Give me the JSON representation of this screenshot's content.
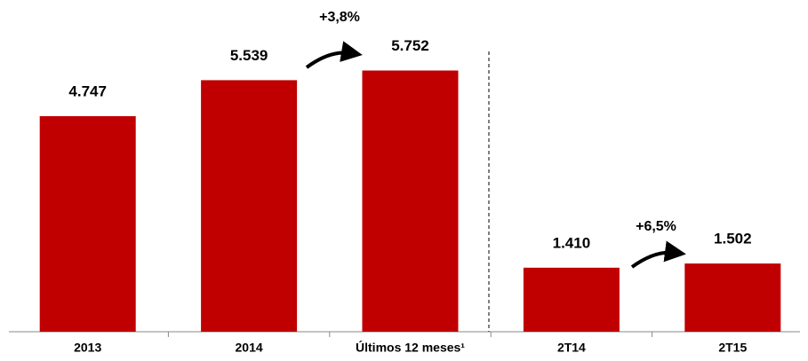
{
  "chart_data": {
    "type": "bar",
    "categories": [
      "2013",
      "2014",
      "Últimos 12 meses¹",
      "2T14",
      "2T15"
    ],
    "values": [
      4747,
      5539,
      5752,
      1410,
      1502
    ],
    "value_labels": [
      "4.747",
      "5.539",
      "5.752",
      "1.410",
      "1.502"
    ],
    "color": "#c00000",
    "annotations": [
      "+3,8%",
      "+6,5%"
    ]
  }
}
